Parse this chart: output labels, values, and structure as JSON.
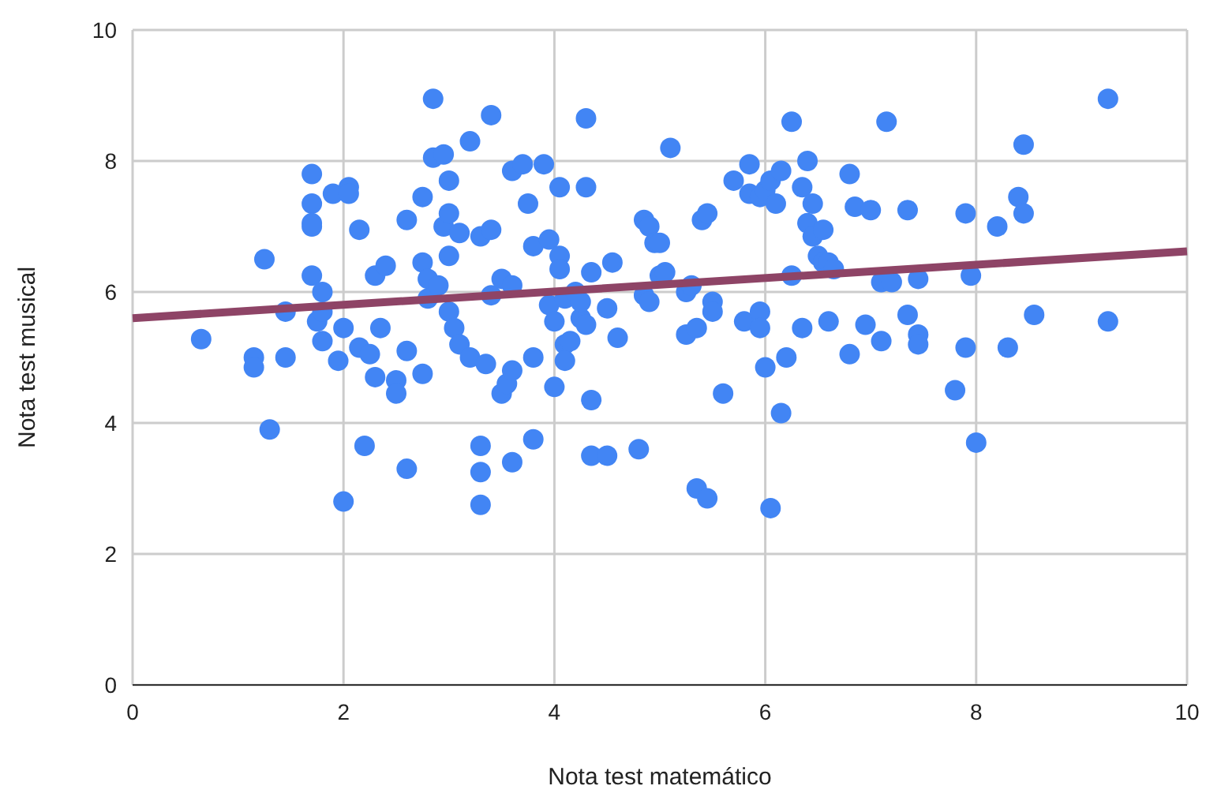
{
  "chart_data": {
    "type": "scatter",
    "xlabel": "Nota test matemático",
    "ylabel": "Nota test musical",
    "xlim": [
      0,
      10
    ],
    "ylim": [
      0,
      10
    ],
    "xticks": [
      0,
      2,
      4,
      6,
      8,
      10
    ],
    "yticks": [
      0,
      2,
      4,
      6,
      8,
      10
    ],
    "grid": true,
    "series": [
      {
        "color": "#4285f4",
        "marker": "circle",
        "x": [
          0.65,
          1.15,
          1.15,
          1.25,
          1.3,
          1.45,
          1.45,
          1.7,
          1.7,
          1.7,
          1.7,
          1.7,
          1.75,
          1.8,
          1.8,
          1.8,
          1.9,
          1.95,
          2.0,
          2.0,
          2.05,
          2.05,
          2.15,
          2.15,
          2.2,
          2.25,
          2.3,
          2.3,
          2.35,
          2.4,
          2.5,
          2.5,
          2.6,
          2.6,
          2.6,
          2.75,
          2.75,
          2.75,
          2.8,
          2.8,
          2.85,
          2.85,
          2.9,
          2.95,
          2.95,
          3.0,
          3.0,
          3.0,
          3.0,
          3.05,
          3.1,
          3.1,
          3.2,
          3.2,
          3.3,
          3.3,
          3.3,
          3.3,
          3.35,
          3.4,
          3.4,
          3.4,
          3.5,
          3.5,
          3.55,
          3.6,
          3.6,
          3.6,
          3.6,
          3.7,
          3.75,
          3.8,
          3.8,
          3.8,
          3.9,
          3.95,
          3.95,
          4.0,
          4.0,
          4.05,
          4.05,
          4.05,
          4.1,
          4.1,
          4.1,
          4.15,
          4.2,
          4.25,
          4.25,
          4.3,
          4.3,
          4.3,
          4.35,
          4.35,
          4.35,
          4.5,
          4.5,
          4.55,
          4.6,
          4.8,
          4.85,
          4.9,
          4.85,
          4.9,
          4.95,
          5.0,
          5.0,
          5.05,
          5.1,
          5.25,
          5.25,
          5.3,
          5.35,
          5.35,
          5.4,
          5.45,
          5.45,
          5.5,
          5.5,
          5.6,
          5.7,
          5.8,
          5.85,
          5.85,
          5.95,
          5.95,
          5.95,
          6.0,
          6.0,
          6.05,
          6.05,
          6.1,
          6.15,
          6.15,
          6.2,
          6.25,
          6.25,
          6.35,
          6.35,
          6.4,
          6.4,
          6.45,
          6.45,
          6.5,
          6.55,
          6.55,
          6.6,
          6.6,
          6.65,
          6.8,
          6.8,
          6.85,
          6.95,
          7.0,
          7.1,
          7.1,
          7.15,
          7.2,
          7.35,
          7.35,
          7.45,
          7.45,
          7.45,
          7.8,
          7.9,
          7.9,
          7.95,
          8.0,
          8.2,
          8.3,
          8.4,
          8.45,
          8.45,
          8.55,
          9.25,
          9.25
        ],
        "values": [
          5.28,
          5.0,
          4.85,
          6.5,
          3.9,
          5.0,
          5.7,
          7.8,
          7.35,
          7.0,
          7.05,
          6.25,
          5.55,
          6.0,
          5.7,
          5.25,
          7.5,
          4.95,
          5.45,
          2.8,
          7.6,
          7.5,
          6.95,
          5.15,
          3.65,
          5.05,
          4.7,
          6.25,
          5.45,
          6.4,
          4.65,
          4.45,
          5.1,
          7.1,
          3.3,
          7.45,
          6.45,
          4.75,
          6.2,
          5.9,
          8.95,
          8.05,
          6.1,
          7.0,
          8.1,
          7.7,
          7.2,
          6.55,
          5.7,
          5.45,
          5.2,
          6.9,
          5.0,
          8.3,
          6.85,
          3.65,
          3.25,
          2.75,
          4.9,
          5.95,
          6.95,
          8.7,
          6.2,
          4.45,
          4.6,
          6.1,
          4.8,
          3.4,
          7.85,
          7.95,
          7.35,
          6.7,
          5.0,
          3.75,
          7.95,
          6.8,
          5.8,
          4.55,
          5.55,
          7.6,
          6.55,
          6.35,
          5.9,
          5.2,
          4.95,
          5.25,
          6.0,
          5.6,
          5.85,
          5.5,
          8.65,
          7.6,
          6.3,
          4.35,
          3.5,
          5.75,
          3.5,
          6.45,
          5.3,
          3.6,
          5.95,
          5.85,
          7.1,
          7.0,
          6.75,
          6.75,
          6.25,
          6.3,
          8.2,
          6.0,
          5.35,
          6.1,
          5.45,
          3.0,
          7.1,
          7.2,
          2.85,
          5.85,
          5.7,
          4.45,
          7.7,
          5.55,
          7.95,
          7.5,
          7.45,
          5.7,
          5.45,
          7.55,
          4.85,
          2.7,
          7.7,
          7.35,
          7.85,
          4.15,
          5.0,
          6.25,
          8.6,
          5.45,
          7.6,
          8.0,
          7.05,
          6.85,
          7.35,
          6.55,
          6.95,
          6.45,
          5.55,
          6.45,
          6.35,
          5.05,
          7.8,
          7.3,
          5.5,
          7.25,
          5.25,
          6.15,
          8.6,
          6.15,
          5.65,
          7.25,
          5.35,
          6.2,
          5.2,
          4.5,
          5.15,
          7.2,
          6.25,
          3.7,
          7.0,
          5.15,
          7.45,
          7.2,
          8.25,
          5.65,
          8.95,
          5.55
        ]
      },
      {
        "type": "line",
        "color": "#8e4466",
        "x": [
          0,
          10
        ],
        "values": [
          5.6,
          6.62
        ]
      }
    ]
  }
}
